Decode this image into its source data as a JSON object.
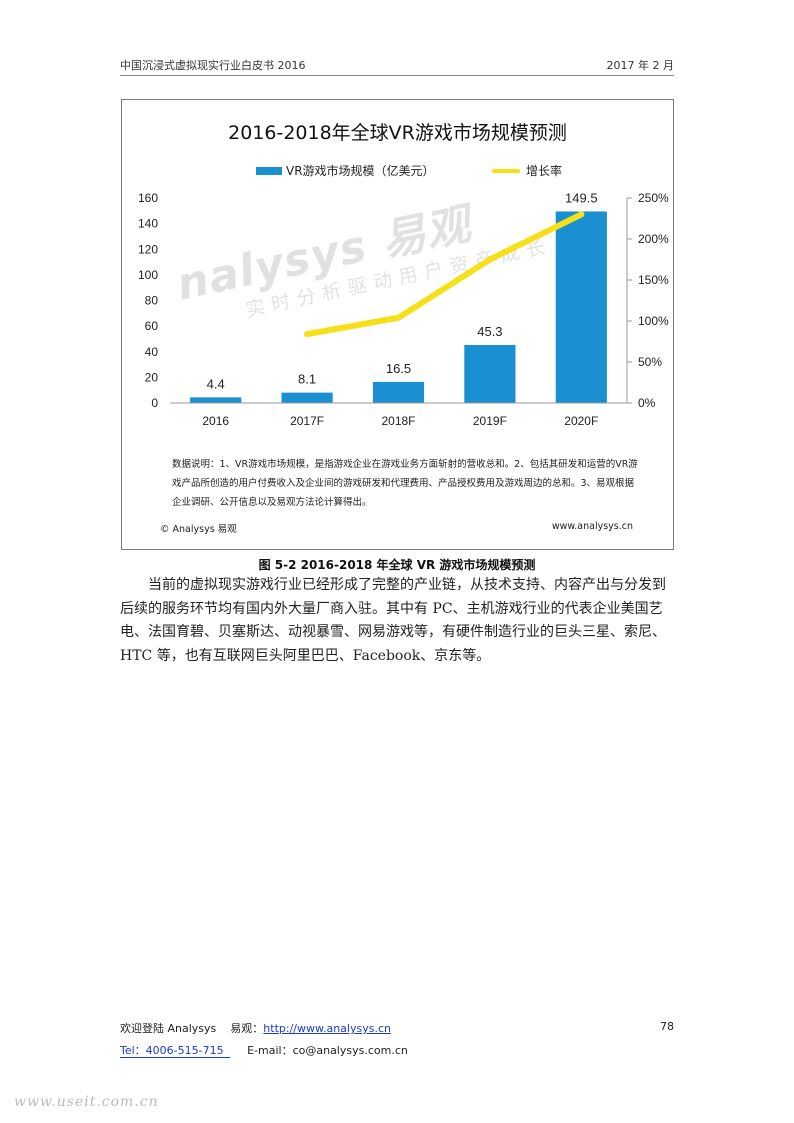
{
  "header": {
    "left": "中国沉浸式虚拟现实行业白皮书 2016",
    "right": "2017 年 2 月"
  },
  "watermark": {
    "main": "nalysys 易观",
    "sub": "实时分析驱动用户资产成长"
  },
  "chart_data": {
    "type": "bar",
    "title": "2016-2018年全球VR游戏市场规模预测",
    "categories": [
      "2016",
      "2017F",
      "2018F",
      "2019F",
      "2020F"
    ],
    "series": [
      {
        "name": "VR游戏市场规模（亿美元）",
        "type": "bar",
        "axis": "left",
        "values": [
          4.4,
          8.1,
          16.5,
          45.3,
          149.5
        ],
        "color": "#1a8fd1"
      },
      {
        "name": "增长率",
        "type": "line",
        "axis": "right",
        "values": [
          null,
          84,
          104,
          175,
          230
        ],
        "color": "#f5e01a"
      }
    ],
    "y_left": {
      "range": [
        0,
        160
      ],
      "ticks": [
        "0",
        "20",
        "40",
        "60",
        "80",
        "100",
        "120",
        "140",
        "160"
      ]
    },
    "y_right": {
      "range": [
        0,
        250
      ],
      "ticks": [
        "0%",
        "50%",
        "100%",
        "150%",
        "200%",
        "250%"
      ]
    },
    "data_labels": [
      "4.4",
      "8.1",
      "16.5",
      "45.3",
      "149.5"
    ],
    "legend_position": "top",
    "grid": false
  },
  "notes": "数据说明：1、VR游戏市场规模，是指游戏企业在游戏业务方面斩射的营收总和。2、包括其研发和运营的VR游戏产品所创造的用户付费收入及企业间的游戏研发和代理费用、产品授权费用及游戏周边的总和。3、易观根据企业调研、公开信息以及易观方法论计算得出。",
  "figure_footer": {
    "left": "© Analysys 易观",
    "right": "www.analysys.cn"
  },
  "caption": "图 5-2 2016-2018 年全球 VR 游戏市场规模预测",
  "paragraph": "当前的虚拟现实游戏行业已经形成了完整的产业链，从技术支持、内容产出与分发到后续的服务环节均有国内外大量厂商入驻。其中有 PC、主机游戏行业的代表企业美国艺电、法国育碧、贝塞斯达、动视暴雪、网易游戏等，有硬件制造行业的巨头三星、索尼、HTC 等，也有互联网巨头阿里巴巴、Facebook、京东等。",
  "footer": {
    "welcome": "欢迎登陆 Analysys",
    "yiguan_label": "易观：",
    "site_url": "http://www.analysys.cn",
    "page_number": "78",
    "tel": "Tel：4006-515-715",
    "email": "E-mail：co@analysys.com.cn"
  },
  "site_mark": "www.useit.com.cn"
}
